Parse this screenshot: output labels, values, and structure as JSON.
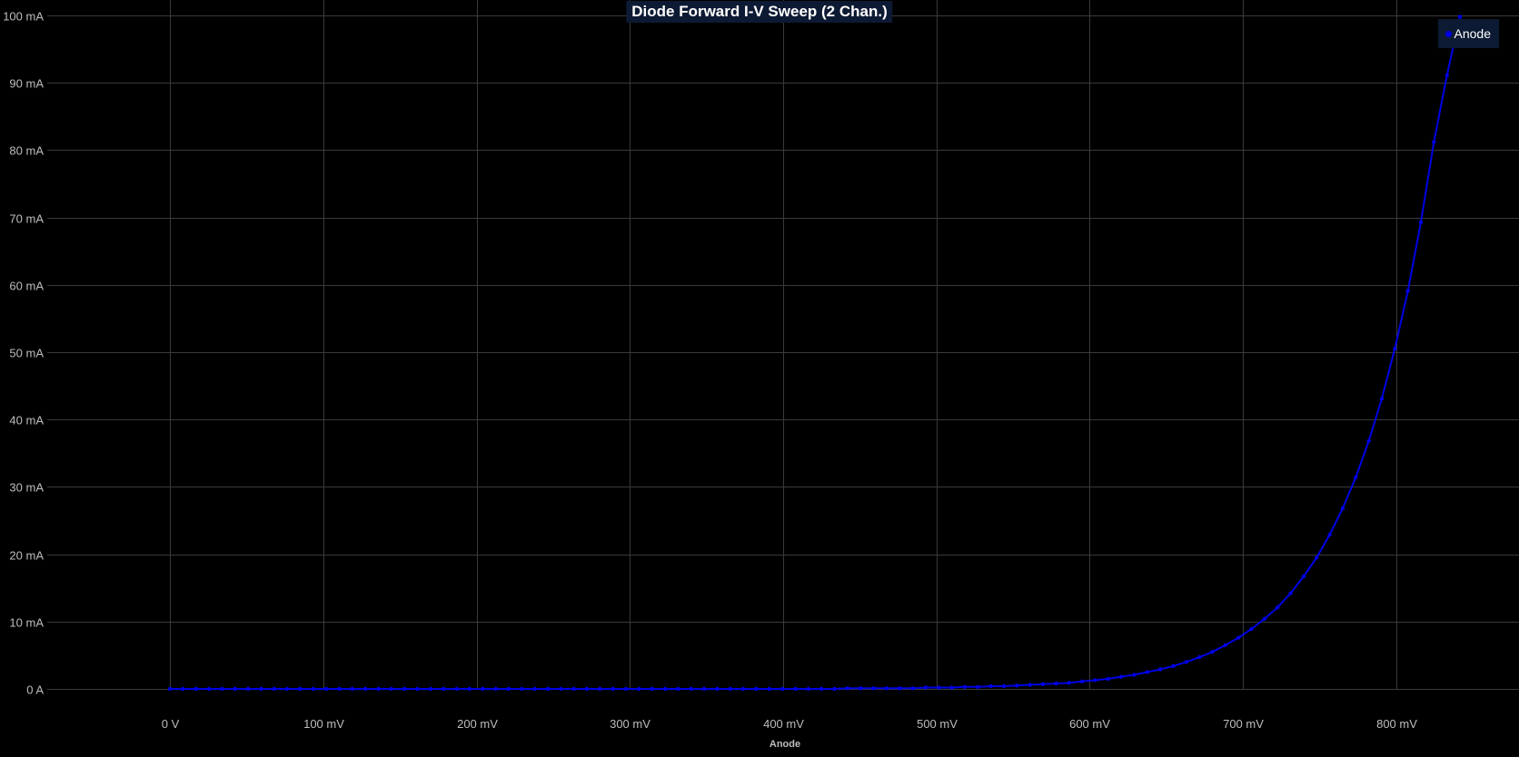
{
  "chart_data": {
    "type": "line",
    "title": "Diode Forward I-V Sweep (2 Chan.)",
    "xlabel": "Anode",
    "ylabel": "",
    "x_unit": "V",
    "y_unit": "A",
    "xlim": [
      -0.08,
      0.88
    ],
    "ylim": [
      0,
      0.1
    ],
    "x_ticks": [
      {
        "value": 0,
        "label": "0 V"
      },
      {
        "value": 0.1,
        "label": "100 mV"
      },
      {
        "value": 0.2,
        "label": "200 mV"
      },
      {
        "value": 0.3,
        "label": "300 mV"
      },
      {
        "value": 0.4,
        "label": "400 mV"
      },
      {
        "value": 0.5,
        "label": "500 mV"
      },
      {
        "value": 0.6,
        "label": "600 mV"
      },
      {
        "value": 0.7,
        "label": "700 mV"
      },
      {
        "value": 0.8,
        "label": "800 mV"
      }
    ],
    "y_ticks": [
      {
        "value": 0,
        "label": "0 A"
      },
      {
        "value": 0.01,
        "label": "10 mA"
      },
      {
        "value": 0.02,
        "label": "20 mA"
      },
      {
        "value": 0.03,
        "label": "30 mA"
      },
      {
        "value": 0.04,
        "label": "40 mA"
      },
      {
        "value": 0.05,
        "label": "50 mA"
      },
      {
        "value": 0.06,
        "label": "60 mA"
      },
      {
        "value": 0.07,
        "label": "70 mA"
      },
      {
        "value": 0.08,
        "label": "80 mA"
      },
      {
        "value": 0.09,
        "label": "90 mA"
      },
      {
        "value": 0.1,
        "label": "100 mA"
      }
    ],
    "grid": true,
    "legend_position": "top-right",
    "series": [
      {
        "name": "Anode",
        "color": "#0000e6",
        "x": [
          0,
          0.0085,
          0.017,
          0.0255,
          0.034,
          0.0425,
          0.051,
          0.0595,
          0.068,
          0.0765,
          0.085,
          0.0935,
          0.102,
          0.1105,
          0.119,
          0.1275,
          0.136,
          0.1445,
          0.153,
          0.1615,
          0.17,
          0.1785,
          0.187,
          0.1955,
          0.204,
          0.2125,
          0.221,
          0.2295,
          0.238,
          0.2465,
          0.255,
          0.2635,
          0.272,
          0.2805,
          0.289,
          0.2975,
          0.306,
          0.3145,
          0.323,
          0.3315,
          0.34,
          0.3485,
          0.357,
          0.3655,
          0.374,
          0.3825,
          0.391,
          0.3995,
          0.408,
          0.4165,
          0.425,
          0.4335,
          0.442,
          0.4505,
          0.459,
          0.4675,
          0.476,
          0.4845,
          0.493,
          0.5015,
          0.51,
          0.5185,
          0.527,
          0.5355,
          0.544,
          0.5525,
          0.561,
          0.5695,
          0.578,
          0.5865,
          0.595,
          0.6035,
          0.612,
          0.6205,
          0.629,
          0.6375,
          0.646,
          0.6545,
          0.663,
          0.6715,
          0.68,
          0.6885,
          0.697,
          0.7055,
          0.714,
          0.7225,
          0.731,
          0.7395,
          0.748,
          0.7565,
          0.765,
          0.7735,
          0.782,
          0.7905,
          0.799,
          0.8075,
          0.816,
          0.8245,
          0.833,
          0.8415
        ],
        "y": [
          0,
          0,
          0,
          0,
          0,
          0,
          0,
          0,
          0,
          0,
          0,
          0,
          0,
          0,
          0,
          0,
          0,
          0,
          0,
          0,
          0,
          0,
          0,
          0,
          0,
          0,
          0,
          0,
          0,
          0,
          0,
          0,
          0,
          0,
          0,
          0,
          0,
          0,
          0,
          0,
          0,
          0,
          0,
          0,
          0,
          0,
          0,
          0,
          0,
          0,
          0,
          0,
          0.0001,
          0.0001,
          0.0001,
          0.0001,
          0.0001,
          0.0001,
          0.0002,
          0.0002,
          0.0002,
          0.0003,
          0.0003,
          0.0004,
          0.0004,
          0.0005,
          0.0006,
          0.0007,
          0.0008,
          0.0009,
          0.0011,
          0.0013,
          0.0015,
          0.0018,
          0.0021,
          0.0025,
          0.0029,
          0.0034,
          0.004,
          0.0047,
          0.0055,
          0.0065,
          0.0076,
          0.0089,
          0.0104,
          0.0121,
          0.0142,
          0.0167,
          0.0195,
          0.0229,
          0.0268,
          0.0314,
          0.0368,
          0.0431,
          0.0505,
          0.0591,
          0.0693,
          0.0812,
          0.0911,
          0.0998
        ]
      }
    ]
  }
}
